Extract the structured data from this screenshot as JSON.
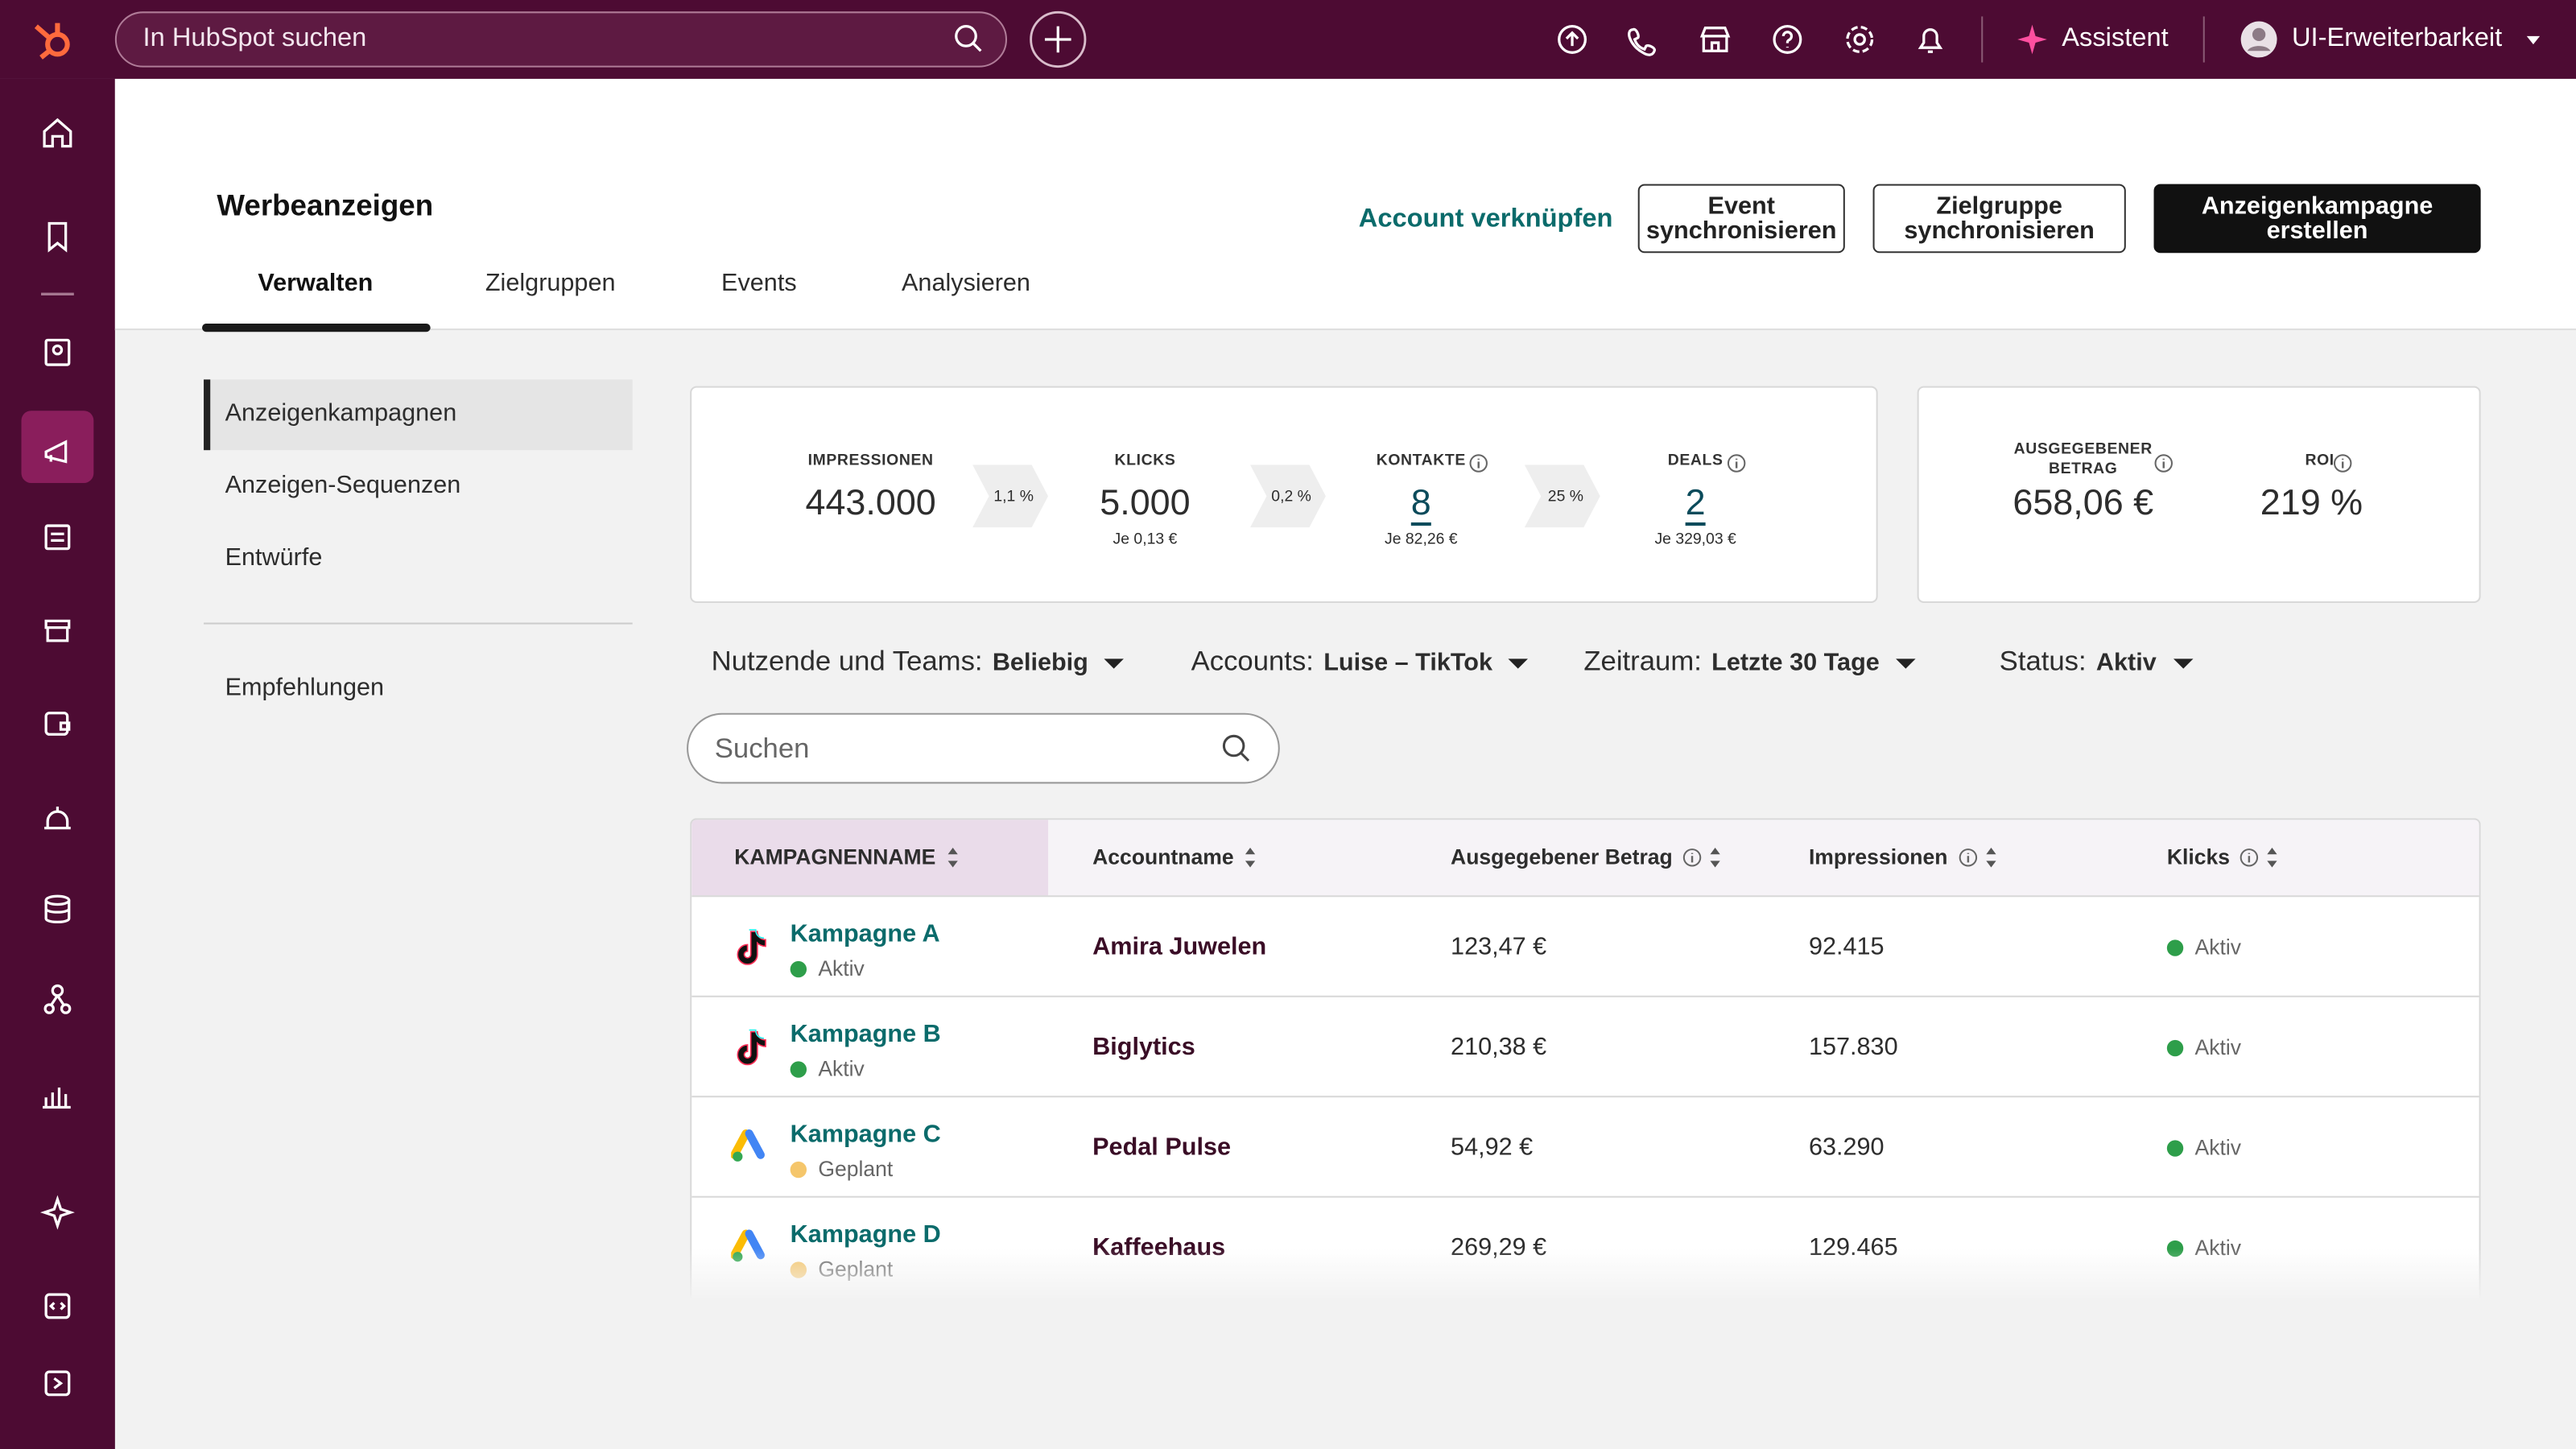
{
  "topbar": {
    "search_placeholder": "In HubSpot suchen",
    "assistant": "Assistent",
    "account": "UI-Erweiterbarkeit"
  },
  "header": {
    "title": "Werbeanzeigen",
    "link": "Account verknüpfen",
    "buttons": [
      "Event synchronisieren",
      "Zielgruppe synchronisieren",
      "Anzeigenkampagne erstellen"
    ]
  },
  "tabs": [
    "Verwalten",
    "Zielgruppen",
    "Events",
    "Analysieren"
  ],
  "sidebar": {
    "items": [
      "Anzeigenkampagnen",
      "Anzeigen-Sequenzen",
      "Entwürfe"
    ],
    "extra": "Empfehlungen"
  },
  "funnel": {
    "steps": [
      {
        "label": "IMPRESSIONEN",
        "value": "443.000"
      },
      {
        "label": "KLICKS",
        "value": "5.000",
        "sub": "Je 0,13 €"
      },
      {
        "label": "KONTAKTE",
        "value": "8",
        "sub": "Je 82,26 €"
      },
      {
        "label": "DEALS",
        "value": "2",
        "sub": "Je 329,03 €"
      }
    ],
    "rates": [
      "1,1 %",
      "0,2 %",
      "25 %"
    ]
  },
  "summary": [
    {
      "label": "AUSGEGEBENER BETRAG",
      "value": "658,06 €"
    },
    {
      "label": "ROI",
      "value": "219 %"
    }
  ],
  "filters": [
    {
      "label": "Nutzende und Teams:",
      "value": "Beliebig"
    },
    {
      "label": "Accounts:",
      "value": "Luise – TikTok"
    },
    {
      "label": "Zeitraum:",
      "value": "Letzte 30 Tage"
    },
    {
      "label": "Status:",
      "value": "Aktiv"
    }
  ],
  "search_placeholder": "Suchen",
  "table": {
    "columns": [
      "KAMPAGNENNAME",
      "Accountname",
      "Ausgegebener Betrag",
      "Impressionen",
      "Klicks"
    ],
    "rows": [
      {
        "name": "Kampagne A",
        "status": "Aktiv",
        "account": "Amira Juwelen",
        "spent": "123,47 €",
        "impressions": "92.415",
        "clicks": "Aktiv"
      },
      {
        "name": "Kampagne B",
        "status": "Aktiv",
        "account": "Biglytics",
        "spent": "210,38 €",
        "impressions": "157.830",
        "clicks": "Aktiv"
      },
      {
        "name": "Kampagne C",
        "status": "Geplant",
        "account": "Pedal Pulse",
        "spent": "54,92 €",
        "impressions": "63.290",
        "clicks": "Aktiv"
      },
      {
        "name": "Kampagne D",
        "status": "Geplant",
        "account": "Kaffeehaus",
        "spent": "269,29 €",
        "impressions": "129.465",
        "clicks": "Aktiv"
      }
    ]
  }
}
